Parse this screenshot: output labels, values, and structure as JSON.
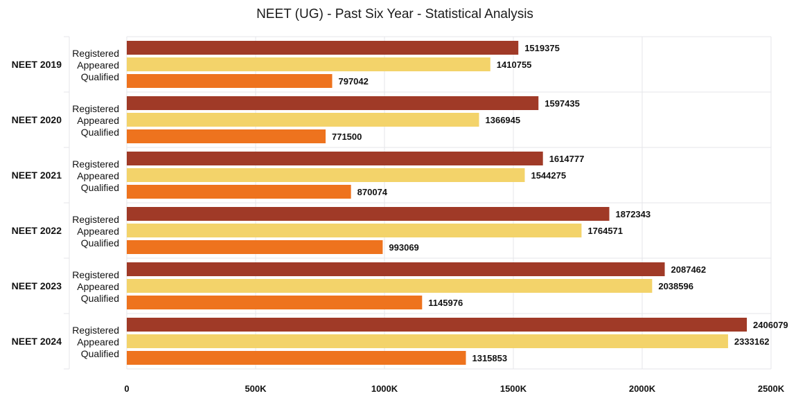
{
  "chart_data": {
    "type": "bar",
    "orientation": "horizontal",
    "title": "NEET (UG) - Past Six Year - Statistical Analysis",
    "xlabel": "",
    "ylabel": "",
    "categories": [
      "NEET 2019",
      "NEET 2020",
      "NEET 2021",
      "NEET 2022",
      "NEET 2023",
      "NEET 2024"
    ],
    "series": [
      {
        "name": "Registered",
        "color": "#a03a27",
        "values": [
          1519375,
          1597435,
          1614777,
          1872343,
          2087462,
          2406079
        ]
      },
      {
        "name": "Appeared",
        "color": "#f3d36a",
        "values": [
          1410755,
          1366945,
          1544275,
          1764571,
          2038596,
          2333162
        ]
      },
      {
        "name": "Qualified",
        "color": "#ee731e",
        "values": [
          797042,
          771500,
          870074,
          993069,
          1145976,
          1315853
        ]
      }
    ],
    "xlim": [
      0,
      2500000
    ],
    "x_ticks": [
      0,
      500000,
      1000000,
      1500000,
      2000000,
      2500000
    ],
    "x_tick_labels": [
      "0",
      "500K",
      "1000K",
      "1500K",
      "2000K",
      "2500K"
    ],
    "grid": true,
    "legend": "none"
  }
}
